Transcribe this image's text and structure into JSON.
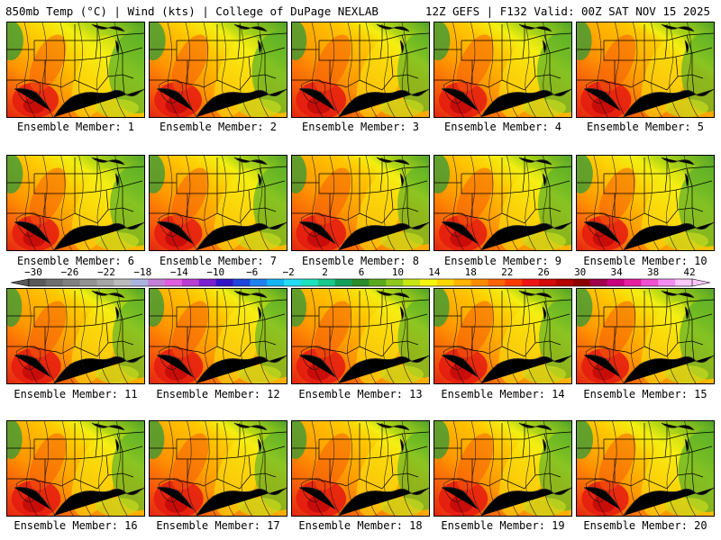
{
  "header": {
    "left": "850mb Temp (°C) | Wind (kts) | College of DuPage NEXLAB",
    "right": "12Z GEFS | F132 Valid: 00Z SAT NOV 15 2025"
  },
  "members": [
    {
      "label": "Ensemble Member: 1",
      "warmth": 0.55,
      "green": 0.62
    },
    {
      "label": "Ensemble Member: 2",
      "warmth": 0.6,
      "green": 0.58
    },
    {
      "label": "Ensemble Member: 3",
      "warmth": 0.7,
      "green": 0.4
    },
    {
      "label": "Ensemble Member: 4",
      "warmth": 0.62,
      "green": 0.55
    },
    {
      "label": "Ensemble Member: 5",
      "warmth": 0.72,
      "green": 0.45
    },
    {
      "label": "Ensemble Member: 6",
      "warmth": 0.58,
      "green": 0.55
    },
    {
      "label": "Ensemble Member: 7",
      "warmth": 0.62,
      "green": 0.5
    },
    {
      "label": "Ensemble Member: 8",
      "warmth": 0.7,
      "green": 0.4
    },
    {
      "label": "Ensemble Member: 9",
      "warmth": 0.62,
      "green": 0.5
    },
    {
      "label": "Ensemble Member: 10",
      "warmth": 0.55,
      "green": 0.6
    },
    {
      "label": "Ensemble Member: 11",
      "warmth": 0.68,
      "green": 0.42
    },
    {
      "label": "Ensemble Member: 12",
      "warmth": 0.66,
      "green": 0.4
    },
    {
      "label": "Ensemble Member: 13",
      "warmth": 0.66,
      "green": 0.38
    },
    {
      "label": "Ensemble Member: 14",
      "warmth": 0.64,
      "green": 0.45
    },
    {
      "label": "Ensemble Member: 15",
      "warmth": 0.6,
      "green": 0.55
    },
    {
      "label": "Ensemble Member: 16",
      "warmth": 0.66,
      "green": 0.45
    },
    {
      "label": "Ensemble Member: 17",
      "warmth": 0.68,
      "green": 0.42
    },
    {
      "label": "Ensemble Member: 18",
      "warmth": 0.7,
      "green": 0.4
    },
    {
      "label": "Ensemble Member: 19",
      "warmth": 0.66,
      "green": 0.45
    },
    {
      "label": "Ensemble Member: 20",
      "warmth": 0.58,
      "green": 0.62
    }
  ],
  "colorbar": {
    "labels": [
      "−30",
      "−26",
      "−22",
      "−18",
      "−14",
      "−10",
      "−6",
      "−2",
      "2",
      "6",
      "10",
      "14",
      "18",
      "22",
      "26",
      "30",
      "34",
      "38",
      "42"
    ],
    "colors": [
      "#595959",
      "#6e6e6e",
      "#808080",
      "#939393",
      "#a6a6a6",
      "#bcbcbc",
      "#a9b4e0",
      "#c47fd8",
      "#e25ee0",
      "#b93cd3",
      "#7a1fd1",
      "#3214c8",
      "#1e46dc",
      "#1e82f0",
      "#14b4f5",
      "#23dcf5",
      "#1ee1be",
      "#19c88c",
      "#14a05a",
      "#2a8c2a",
      "#5aaa1e",
      "#8cc81e",
      "#c8e614",
      "#f5f50f",
      "#ffd700",
      "#ffb400",
      "#ff8c00",
      "#ff6400",
      "#ff3c00",
      "#f01414",
      "#d20a0a",
      "#b40000",
      "#8c0000",
      "#a0004b",
      "#c8007d",
      "#e61ea0",
      "#f050d2",
      "#f58cf0",
      "#fac8fa"
    ]
  }
}
